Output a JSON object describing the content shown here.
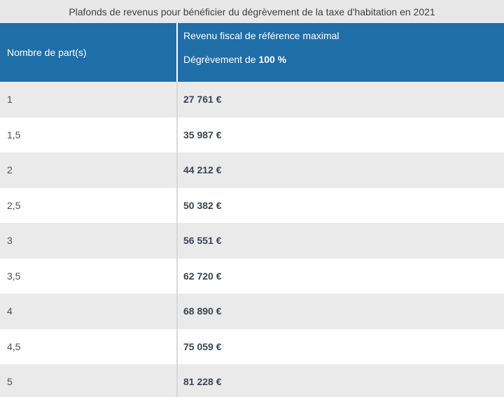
{
  "caption": {
    "text": "Plafonds de revenus pour bénéficier du dégrèvement de la taxe d'habitation en 2021"
  },
  "table": {
    "header": {
      "col1": "Nombre de part(s)",
      "col2_line1": "Revenu fiscal de référence maximal",
      "col2_line2_prefix": "Dégrèvement de ",
      "col2_line2_bold": "100 %"
    },
    "rows": [
      {
        "parts": "1",
        "value": "27 761 €"
      },
      {
        "parts": "1,5",
        "value": "35 987 €"
      },
      {
        "parts": "2",
        "value": "44 212 €"
      },
      {
        "parts": "2,5",
        "value": "50 382 €"
      },
      {
        "parts": "3",
        "value": "56 551 €"
      },
      {
        "parts": "3,5",
        "value": "62 720 €"
      },
      {
        "parts": "4",
        "value": "68 890 €"
      },
      {
        "parts": "4,5",
        "value": "75 059 €"
      },
      {
        "parts": "5",
        "value": "81 228 €"
      }
    ]
  },
  "colors": {
    "header_blue": "#1f6ea8",
    "caption_bg": "#e8e8e8",
    "row_alt_bg": "#eaeaea",
    "row_bg": "#ffffff",
    "divider": "#d9d9d9",
    "header_divider": "#fdfdfd",
    "value_text": "#3d4351",
    "parts_text": "#4e4e4e",
    "caption_text": "#3f3f3f"
  }
}
